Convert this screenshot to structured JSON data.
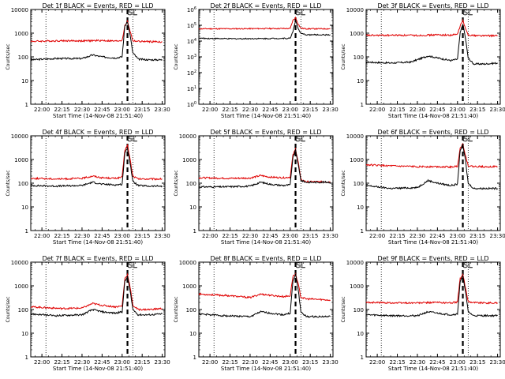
{
  "figure": {
    "panel_titles": [
      "Det 1f BLACK = Events, RED = LLD",
      "Det 2f BLACK = Events, RED = LLD",
      "Det 3f BLACK = Events, RED = LLD",
      "Det 4f BLACK = Events, RED = LLD",
      "Det 5f BLACK = Events, RED = LLD",
      "Det 6f BLACK = Events, RED = LLD",
      "Det 7f BLACK = Events, RED = LLD",
      "Det 8f BLACK = Events, RED = LLD",
      "Det 9f BLACK = Events, RED = LLD"
    ],
    "annotation": "SL",
    "xlabel": "Start Time (14-Nov-08 21:51:40)",
    "ylabel": "Counts/sec",
    "colors": {
      "events": "#000000",
      "lld": "#e00000"
    }
  },
  "chart_data": [
    {
      "type": "line",
      "title": "Det 1f BLACK = Events, RED = LLD",
      "xlabel": "Start Time (14-Nov-08 21:51:40)",
      "ylabel": "Counts/sec",
      "log_y": true,
      "ylim": [
        1,
        10000
      ],
      "xlim": [
        "21:51:40",
        "23:32:00"
      ],
      "x_ticks": [
        "22:00",
        "22:15",
        "22:30",
        "22:45",
        "23:00",
        "23:15",
        "23:30"
      ],
      "y_ticks": [
        "1",
        "10",
        "100",
        "1000",
        "10000"
      ],
      "vertical_lines": [
        {
          "time": "22:03",
          "style": "dotted"
        },
        {
          "time": "23:04",
          "style": "dashed"
        },
        {
          "time": "23:08",
          "style": "dotted"
        }
      ],
      "annotation": "SL",
      "series": [
        {
          "color": "#000000",
          "x": [
            "21:51:40",
            "22:10",
            "22:30",
            "22:38",
            "22:45",
            "22:55",
            "23:00",
            "23:02",
            "23:04",
            "23:06",
            "23:08",
            "23:12",
            "23:20",
            "23:30"
          ],
          "values": [
            75,
            85,
            85,
            120,
            100,
            90,
            100,
            2000,
            3000,
            800,
            150,
            80,
            75,
            75
          ]
        },
        {
          "color": "#e00000",
          "x": [
            "21:51:40",
            "22:15",
            "22:30",
            "22:45",
            "22:55",
            "23:00",
            "23:02",
            "23:04",
            "23:06",
            "23:08",
            "23:12",
            "23:20",
            "23:30"
          ],
          "values": [
            450,
            480,
            470,
            490,
            460,
            500,
            2000,
            3200,
            1200,
            480,
            450,
            440,
            430
          ]
        }
      ]
    },
    {
      "type": "line",
      "title": "Det 2f BLACK = Events, RED = LLD",
      "xlabel": "Start Time (14-Nov-08 21:51:40)",
      "ylabel": "Counts/sec",
      "log_y": true,
      "ylim": [
        1,
        1000000
      ],
      "xlim": [
        "21:51:40",
        "23:32:00"
      ],
      "x_ticks": [
        "22:00",
        "22:15",
        "22:30",
        "22:45",
        "23:00",
        "23:15",
        "23:30"
      ],
      "y_ticks": [
        "10^0",
        "10^1",
        "10^2",
        "10^3",
        "10^4",
        "10^5",
        "10^6"
      ],
      "vertical_lines": [
        {
          "time": "22:03",
          "style": "dotted"
        },
        {
          "time": "23:04",
          "style": "dashed"
        },
        {
          "time": "23:08",
          "style": "dotted"
        }
      ],
      "annotation": "SL",
      "series": [
        {
          "color": "#000000",
          "x": [
            "21:51:40",
            "22:15",
            "22:45",
            "23:00",
            "23:02",
            "23:04",
            "23:06",
            "23:08",
            "23:12",
            "23:20",
            "23:30"
          ],
          "values": [
            15000,
            14000,
            14500,
            15000,
            40000,
            200000,
            60000,
            30000,
            25000,
            25000,
            25000
          ]
        },
        {
          "color": "#e00000",
          "x": [
            "21:51:40",
            "22:15",
            "22:45",
            "23:00",
            "23:02",
            "23:04",
            "23:06",
            "23:08",
            "23:12",
            "23:20",
            "23:30"
          ],
          "values": [
            60000,
            60000,
            62000,
            62000,
            200000,
            300000,
            120000,
            65000,
            60000,
            60000,
            60000
          ]
        }
      ]
    },
    {
      "type": "line",
      "title": "Det 3f BLACK = Events, RED = LLD",
      "xlabel": "Start Time (14-Nov-08 21:51:40)",
      "ylabel": "Counts/sec",
      "log_y": true,
      "ylim": [
        1,
        10000
      ],
      "xlim": [
        "21:51:40",
        "23:32:00"
      ],
      "x_ticks": [
        "22:00",
        "22:15",
        "22:30",
        "22:45",
        "23:00",
        "23:15",
        "23:30"
      ],
      "y_ticks": [
        "1",
        "10",
        "100",
        "1000",
        "10000"
      ],
      "vertical_lines": [
        {
          "time": "22:03",
          "style": "dotted"
        },
        {
          "time": "23:04",
          "style": "dashed"
        },
        {
          "time": "23:08",
          "style": "dotted"
        }
      ],
      "annotation": "SL",
      "series": [
        {
          "color": "#000000",
          "x": [
            "21:51:40",
            "22:10",
            "22:25",
            "22:38",
            "22:45",
            "22:55",
            "23:00",
            "23:02",
            "23:04",
            "23:06",
            "23:08",
            "23:12",
            "23:20",
            "23:30"
          ],
          "values": [
            60,
            55,
            60,
            110,
            90,
            70,
            80,
            1000,
            2500,
            600,
            90,
            50,
            50,
            55
          ]
        },
        {
          "color": "#e00000",
          "x": [
            "21:51:40",
            "22:15",
            "22:30",
            "22:45",
            "22:55",
            "23:00",
            "23:02",
            "23:04",
            "23:06",
            "23:08",
            "23:12",
            "23:20",
            "23:30"
          ],
          "values": [
            800,
            820,
            800,
            850,
            820,
            900,
            2000,
            3500,
            1500,
            850,
            800,
            780,
            780
          ]
        }
      ]
    },
    {
      "type": "line",
      "title": "Det 4f BLACK = Events, RED = LLD",
      "xlabel": "Start Time (14-Nov-08 21:51:40)",
      "ylabel": "Counts/sec",
      "log_y": true,
      "ylim": [
        1,
        10000
      ],
      "xlim": [
        "21:51:40",
        "23:32:00"
      ],
      "x_ticks": [
        "22:00",
        "22:15",
        "22:30",
        "22:45",
        "23:00",
        "23:15",
        "23:30"
      ],
      "y_ticks": [
        "1",
        "10",
        "100",
        "1000",
        "10000"
      ],
      "vertical_lines": [
        {
          "time": "22:03",
          "style": "dotted"
        },
        {
          "time": "23:04",
          "style": "dashed"
        },
        {
          "time": "23:08",
          "style": "dotted"
        }
      ],
      "annotation": "SL",
      "series": [
        {
          "color": "#000000",
          "x": [
            "21:51:40",
            "22:10",
            "22:30",
            "22:38",
            "22:45",
            "22:55",
            "23:00",
            "23:02",
            "23:04",
            "23:06",
            "23:08",
            "23:12",
            "23:20",
            "23:30"
          ],
          "values": [
            80,
            75,
            80,
            110,
            90,
            85,
            90,
            1800,
            3000,
            700,
            120,
            80,
            75,
            75
          ]
        },
        {
          "color": "#e00000",
          "x": [
            "21:51:40",
            "22:15",
            "22:30",
            "22:38",
            "22:45",
            "22:55",
            "23:00",
            "23:02",
            "23:04",
            "23:06",
            "23:08",
            "23:12",
            "23:20",
            "23:30"
          ],
          "values": [
            160,
            150,
            160,
            200,
            170,
            160,
            180,
            2500,
            4000,
            1000,
            200,
            150,
            150,
            150
          ]
        }
      ]
    },
    {
      "type": "line",
      "title": "Det 5f BLACK = Events, RED = LLD",
      "xlabel": "Start Time (14-Nov-08 21:51:40)",
      "ylabel": "Counts/sec",
      "log_y": true,
      "ylim": [
        1,
        10000
      ],
      "xlim": [
        "21:51:40",
        "23:32:00"
      ],
      "x_ticks": [
        "22:00",
        "22:15",
        "22:30",
        "22:45",
        "23:00",
        "23:15",
        "23:30"
      ],
      "y_ticks": [
        "1",
        "10",
        "100",
        "1000",
        "10000"
      ],
      "vertical_lines": [
        {
          "time": "22:03",
          "style": "dotted"
        },
        {
          "time": "23:04",
          "style": "dashed"
        },
        {
          "time": "23:08",
          "style": "dotted"
        }
      ],
      "annotation": "SL",
      "series": [
        {
          "color": "#000000",
          "x": [
            "21:51:40",
            "22:10",
            "22:30",
            "22:38",
            "22:45",
            "22:55",
            "23:00",
            "23:02",
            "23:04",
            "23:06",
            "23:08",
            "23:12",
            "23:20",
            "23:30"
          ],
          "values": [
            70,
            70,
            75,
            110,
            90,
            80,
            85,
            1200,
            2500,
            600,
            130,
            110,
            110,
            110
          ]
        },
        {
          "color": "#e00000",
          "x": [
            "21:51:40",
            "22:15",
            "22:30",
            "22:38",
            "22:45",
            "22:55",
            "23:00",
            "23:02",
            "23:04",
            "23:06",
            "23:08",
            "23:12",
            "23:20",
            "23:30"
          ],
          "values": [
            170,
            160,
            165,
            210,
            180,
            170,
            180,
            1500,
            2800,
            800,
            140,
            115,
            115,
            115
          ]
        }
      ]
    },
    {
      "type": "line",
      "title": "Det 6f BLACK = Events, RED = LLD",
      "xlabel": "Start Time (14-Nov-08 21:51:40)",
      "ylabel": "Counts/sec",
      "log_y": true,
      "ylim": [
        1,
        10000
      ],
      "xlim": [
        "21:51:40",
        "23:32:00"
      ],
      "x_ticks": [
        "22:00",
        "22:15",
        "22:30",
        "22:45",
        "23:00",
        "23:15",
        "23:30"
      ],
      "y_ticks": [
        "1",
        "10",
        "100",
        "1000",
        "10000"
      ],
      "vertical_lines": [
        {
          "time": "22:03",
          "style": "dotted"
        },
        {
          "time": "23:04",
          "style": "dashed"
        },
        {
          "time": "23:08",
          "style": "dotted"
        }
      ],
      "annotation": "SL",
      "series": [
        {
          "color": "#000000",
          "x": [
            "21:51:40",
            "22:10",
            "22:30",
            "22:38",
            "22:45",
            "22:55",
            "23:00",
            "23:02",
            "23:04",
            "23:06",
            "23:08",
            "23:12",
            "23:20",
            "23:30"
          ],
          "values": [
            80,
            60,
            65,
            130,
            100,
            80,
            90,
            2500,
            4000,
            900,
            100,
            60,
            60,
            60
          ]
        },
        {
          "color": "#e00000",
          "x": [
            "21:51:40",
            "22:15",
            "22:30",
            "22:45",
            "22:55",
            "23:00",
            "23:02",
            "23:04",
            "23:06",
            "23:08",
            "23:12",
            "23:20",
            "23:30"
          ],
          "values": [
            600,
            520,
            500,
            500,
            480,
            520,
            3000,
            4500,
            1500,
            550,
            500,
            500,
            500
          ]
        }
      ]
    },
    {
      "type": "line",
      "title": "Det 7f BLACK = Events, RED = LLD",
      "xlabel": "Start Time (14-Nov-08 21:51:40)",
      "ylabel": "Counts/sec",
      "log_y": true,
      "ylim": [
        1,
        10000
      ],
      "xlim": [
        "21:51:40",
        "23:32:00"
      ],
      "x_ticks": [
        "22:00",
        "22:15",
        "22:30",
        "22:45",
        "23:00",
        "23:15",
        "23:30"
      ],
      "y_ticks": [
        "1",
        "10",
        "100",
        "1000",
        "10000"
      ],
      "vertical_lines": [
        {
          "time": "22:03",
          "style": "dotted"
        },
        {
          "time": "23:04",
          "style": "dashed"
        },
        {
          "time": "23:08",
          "style": "dotted"
        }
      ],
      "annotation": "SL",
      "series": [
        {
          "color": "#000000",
          "x": [
            "21:51:40",
            "22:10",
            "22:30",
            "22:38",
            "22:45",
            "22:55",
            "23:00",
            "23:02",
            "23:04",
            "23:06",
            "23:08",
            "23:12",
            "23:20",
            "23:30"
          ],
          "values": [
            65,
            55,
            60,
            100,
            80,
            70,
            80,
            1500,
            2500,
            600,
            100,
            60,
            60,
            65
          ]
        },
        {
          "color": "#e00000",
          "x": [
            "21:51:40",
            "22:15",
            "22:30",
            "22:38",
            "22:45",
            "22:55",
            "23:00",
            "23:02",
            "23:04",
            "23:06",
            "23:08",
            "23:12",
            "23:20",
            "23:30"
          ],
          "values": [
            130,
            110,
            115,
            180,
            150,
            130,
            140,
            2000,
            3000,
            900,
            150,
            100,
            100,
            110
          ]
        }
      ]
    },
    {
      "type": "line",
      "title": "Det 8f BLACK = Events, RED = LLD",
      "xlabel": "Start Time (14-Nov-08 21:51:40)",
      "ylabel": "Counts/sec",
      "log_y": true,
      "ylim": [
        1,
        10000
      ],
      "xlim": [
        "21:51:40",
        "23:32:00"
      ],
      "x_ticks": [
        "22:00",
        "22:15",
        "22:30",
        "22:45",
        "23:00",
        "23:15",
        "23:30"
      ],
      "y_ticks": [
        "1",
        "10",
        "100",
        "1000",
        "10000"
      ],
      "vertical_lines": [
        {
          "time": "22:03",
          "style": "dotted"
        },
        {
          "time": "23:04",
          "style": "dashed"
        },
        {
          "time": "23:08",
          "style": "dotted"
        }
      ],
      "annotation": "SL",
      "series": [
        {
          "color": "#000000",
          "x": [
            "21:51:40",
            "22:10",
            "22:30",
            "22:38",
            "22:45",
            "22:55",
            "23:00",
            "23:02",
            "23:04",
            "23:06",
            "23:08",
            "23:12",
            "23:20",
            "23:30"
          ],
          "values": [
            65,
            55,
            50,
            80,
            70,
            60,
            70,
            1500,
            3000,
            700,
            80,
            50,
            50,
            50
          ]
        },
        {
          "color": "#e00000",
          "x": [
            "21:51:40",
            "22:15",
            "22:30",
            "22:38",
            "22:45",
            "22:55",
            "23:00",
            "23:02",
            "23:04",
            "23:06",
            "23:08",
            "23:12",
            "23:20",
            "23:30"
          ],
          "values": [
            450,
            380,
            320,
            450,
            400,
            350,
            380,
            2500,
            3200,
            1200,
            330,
            280,
            270,
            250
          ]
        }
      ]
    },
    {
      "type": "line",
      "title": "Det 9f BLACK = Events, RED = LLD",
      "xlabel": "Start Time (14-Nov-08 21:51:40)",
      "ylabel": "Counts/sec",
      "log_y": true,
      "ylim": [
        1,
        10000
      ],
      "xlim": [
        "21:51:40",
        "23:32:00"
      ],
      "x_ticks": [
        "22:00",
        "22:15",
        "22:30",
        "22:45",
        "23:00",
        "23:15",
        "23:30"
      ],
      "y_ticks": [
        "1",
        "10",
        "100",
        "1000",
        "10000"
      ],
      "vertical_lines": [
        {
          "time": "22:03",
          "style": "dotted"
        },
        {
          "time": "23:04",
          "style": "dashed"
        },
        {
          "time": "23:08",
          "style": "dotted"
        }
      ],
      "annotation": "SL",
      "series": [
        {
          "color": "#000000",
          "x": [
            "21:51:40",
            "22:10",
            "22:30",
            "22:38",
            "22:45",
            "22:55",
            "23:00",
            "23:02",
            "23:04",
            "23:06",
            "23:08",
            "23:12",
            "23:20",
            "23:30"
          ],
          "values": [
            60,
            55,
            55,
            80,
            70,
            60,
            65,
            1500,
            2500,
            600,
            80,
            55,
            55,
            55
          ]
        },
        {
          "color": "#e00000",
          "x": [
            "21:51:40",
            "22:15",
            "22:30",
            "22:45",
            "22:55",
            "23:00",
            "23:02",
            "23:04",
            "23:06",
            "23:08",
            "23:12",
            "23:20",
            "23:30"
          ],
          "values": [
            200,
            190,
            190,
            200,
            190,
            210,
            2000,
            3000,
            800,
            220,
            200,
            190,
            190
          ]
        }
      ]
    }
  ]
}
